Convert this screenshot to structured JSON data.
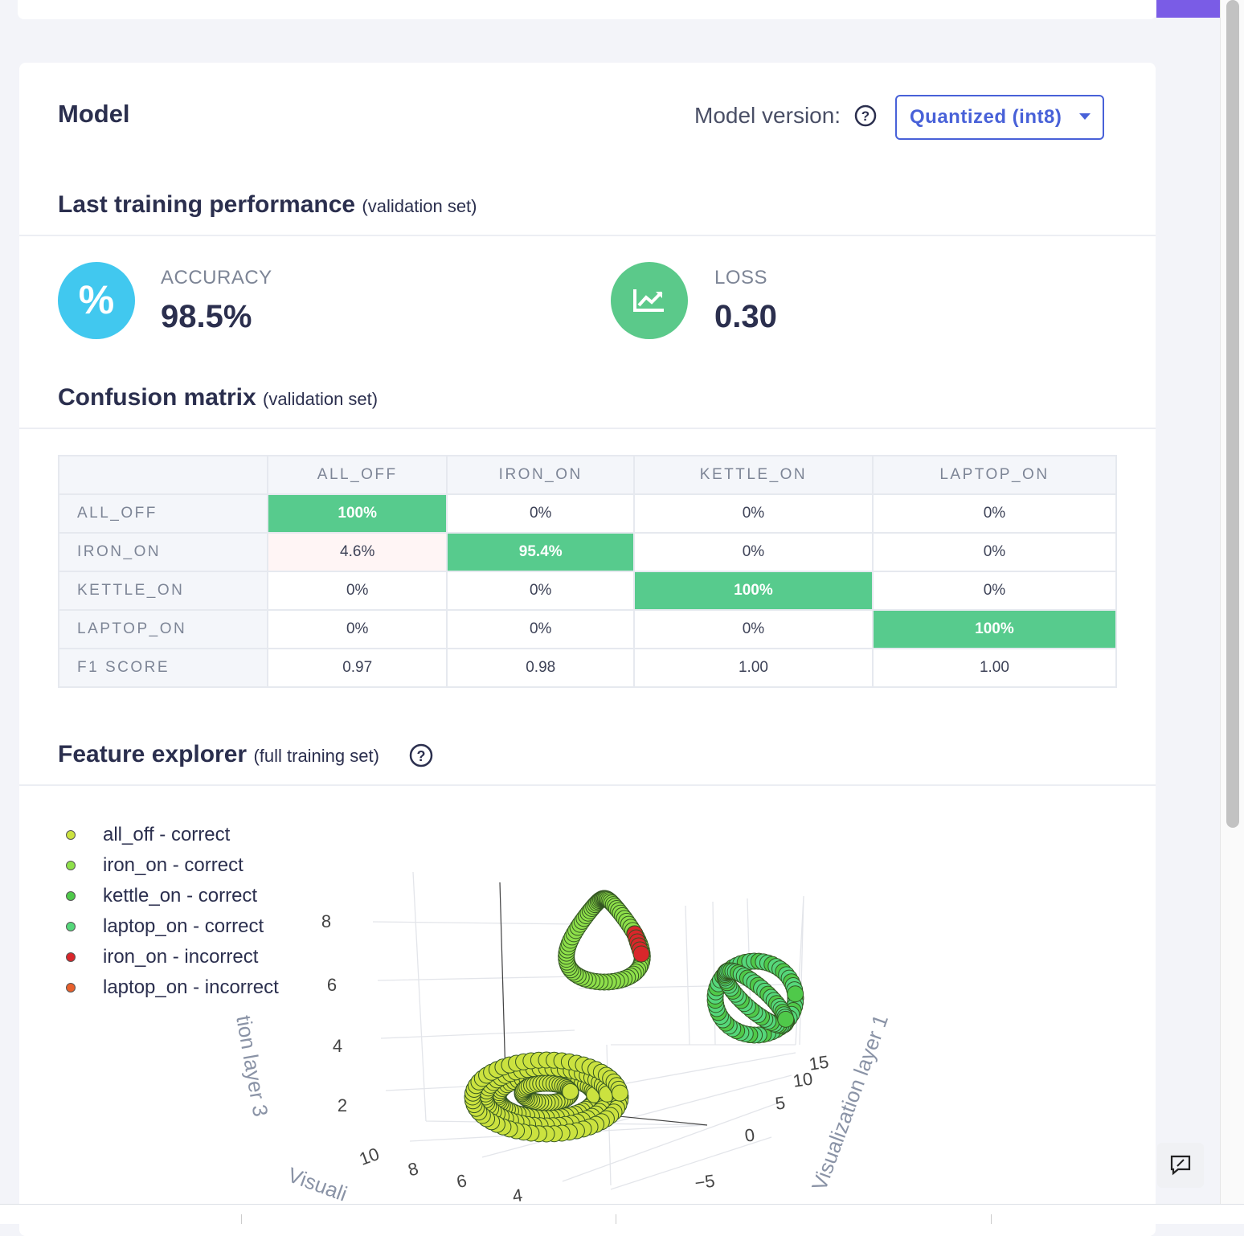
{
  "header": {
    "title": "Model",
    "version_label": "Model version:",
    "version_select": "Quantized (int8)"
  },
  "performance": {
    "title": "Last training performance",
    "subtitle": "(validation set)",
    "metrics": [
      {
        "label": "ACCURACY",
        "value": "98.5%"
      },
      {
        "label": "LOSS",
        "value": "0.30"
      }
    ]
  },
  "confusion_matrix": {
    "title": "Confusion matrix",
    "subtitle": "(validation set)",
    "columns": [
      "ALL_OFF",
      "IRON_ON",
      "KETTLE_ON",
      "LAPTOP_ON"
    ],
    "rows": [
      {
        "label": "ALL_OFF",
        "cells": [
          "100%",
          "0%",
          "0%",
          "0%"
        ]
      },
      {
        "label": "IRON_ON",
        "cells": [
          "4.6%",
          "95.4%",
          "0%",
          "0%"
        ]
      },
      {
        "label": "KETTLE_ON",
        "cells": [
          "0%",
          "0%",
          "100%",
          "0%"
        ]
      },
      {
        "label": "LAPTOP_ON",
        "cells": [
          "0%",
          "0%",
          "0%",
          "100%"
        ]
      },
      {
        "label": "F1 SCORE",
        "cells": [
          "0.97",
          "0.98",
          "1.00",
          "1.00"
        ]
      }
    ]
  },
  "feature_explorer": {
    "title": "Feature explorer",
    "subtitle": "(full training set)",
    "legend": [
      {
        "label": "all_off - correct",
        "color": "#cbe23f"
      },
      {
        "label": "iron_on - correct",
        "color": "#8ee04a"
      },
      {
        "label": "kettle_on - correct",
        "color": "#4fc94a"
      },
      {
        "label": "laptop_on - correct",
        "color": "#55d77a"
      },
      {
        "label": "iron_on - incorrect",
        "color": "#d9262b"
      },
      {
        "label": "laptop_on - incorrect",
        "color": "#e8602c"
      }
    ],
    "axes": {
      "z_ticks": [
        "8",
        "6",
        "4",
        "2"
      ],
      "x_ticks": [
        "10",
        "8",
        "6",
        "4"
      ],
      "y_ticks": [
        "15",
        "10",
        "5",
        "0",
        "−5"
      ],
      "z_label": "tion layer 3",
      "x_label": "Visuali",
      "y_label": "Visualization layer 1"
    }
  }
}
